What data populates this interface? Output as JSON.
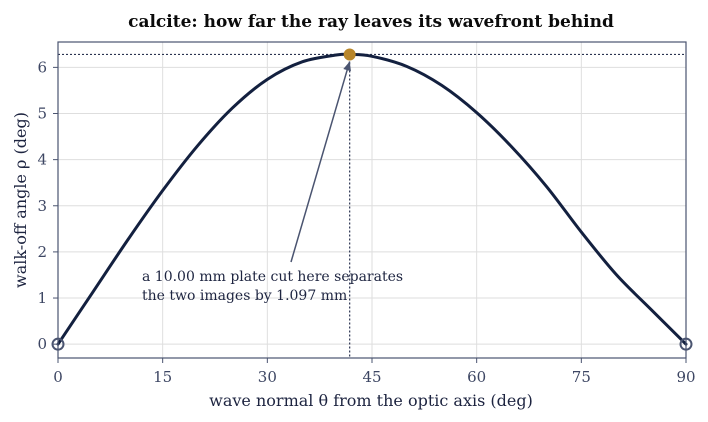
{
  "chart_data": {
    "type": "line",
    "title": "calcite: how far the ray leaves its wavefront behind",
    "xlabel": "wave normal θ from the optic axis  (deg)",
    "ylabel": "walk-off angle ρ  (deg)",
    "xlim": [
      0,
      90
    ],
    "ylim": [
      -0.3,
      6.55
    ],
    "xticks": [
      0,
      15,
      30,
      45,
      60,
      75,
      90
    ],
    "yticks": [
      0,
      1,
      2,
      3,
      4,
      5,
      6
    ],
    "grid": true,
    "series": [
      {
        "x": [
          0,
          5,
          10,
          15,
          20,
          25,
          30,
          35,
          40,
          41.8,
          45,
          50,
          55,
          60,
          65,
          70,
          75,
          80,
          85,
          90
        ],
        "y": [
          0,
          1.13,
          2.26,
          3.33,
          4.3,
          5.12,
          5.74,
          6.12,
          6.27,
          6.28,
          6.24,
          6.02,
          5.61,
          5.02,
          4.28,
          3.42,
          2.43,
          1.51,
          0.75,
          0
        ]
      }
    ],
    "markers": {
      "max_point": {
        "x": 41.8,
        "y": 6.28,
        "color": "#b8862b"
      },
      "endpoints": [
        {
          "x": 0,
          "y": 0
        },
        {
          "x": 90,
          "y": 0
        }
      ]
    },
    "reference_lines": {
      "vertical_x": 41.8,
      "horizontal_y": 6.28
    },
    "annotation": {
      "line1": "a 10.00 mm plate cut here separates",
      "line2": "the two images by 1.097 mm",
      "points_to": {
        "x": 41.8,
        "y": 6.28
      }
    },
    "colors": {
      "line": "#13203f",
      "frame": "#4a5470",
      "grid": "#dedede",
      "ref": "#2a3350",
      "arrow": "#4a5470"
    }
  }
}
